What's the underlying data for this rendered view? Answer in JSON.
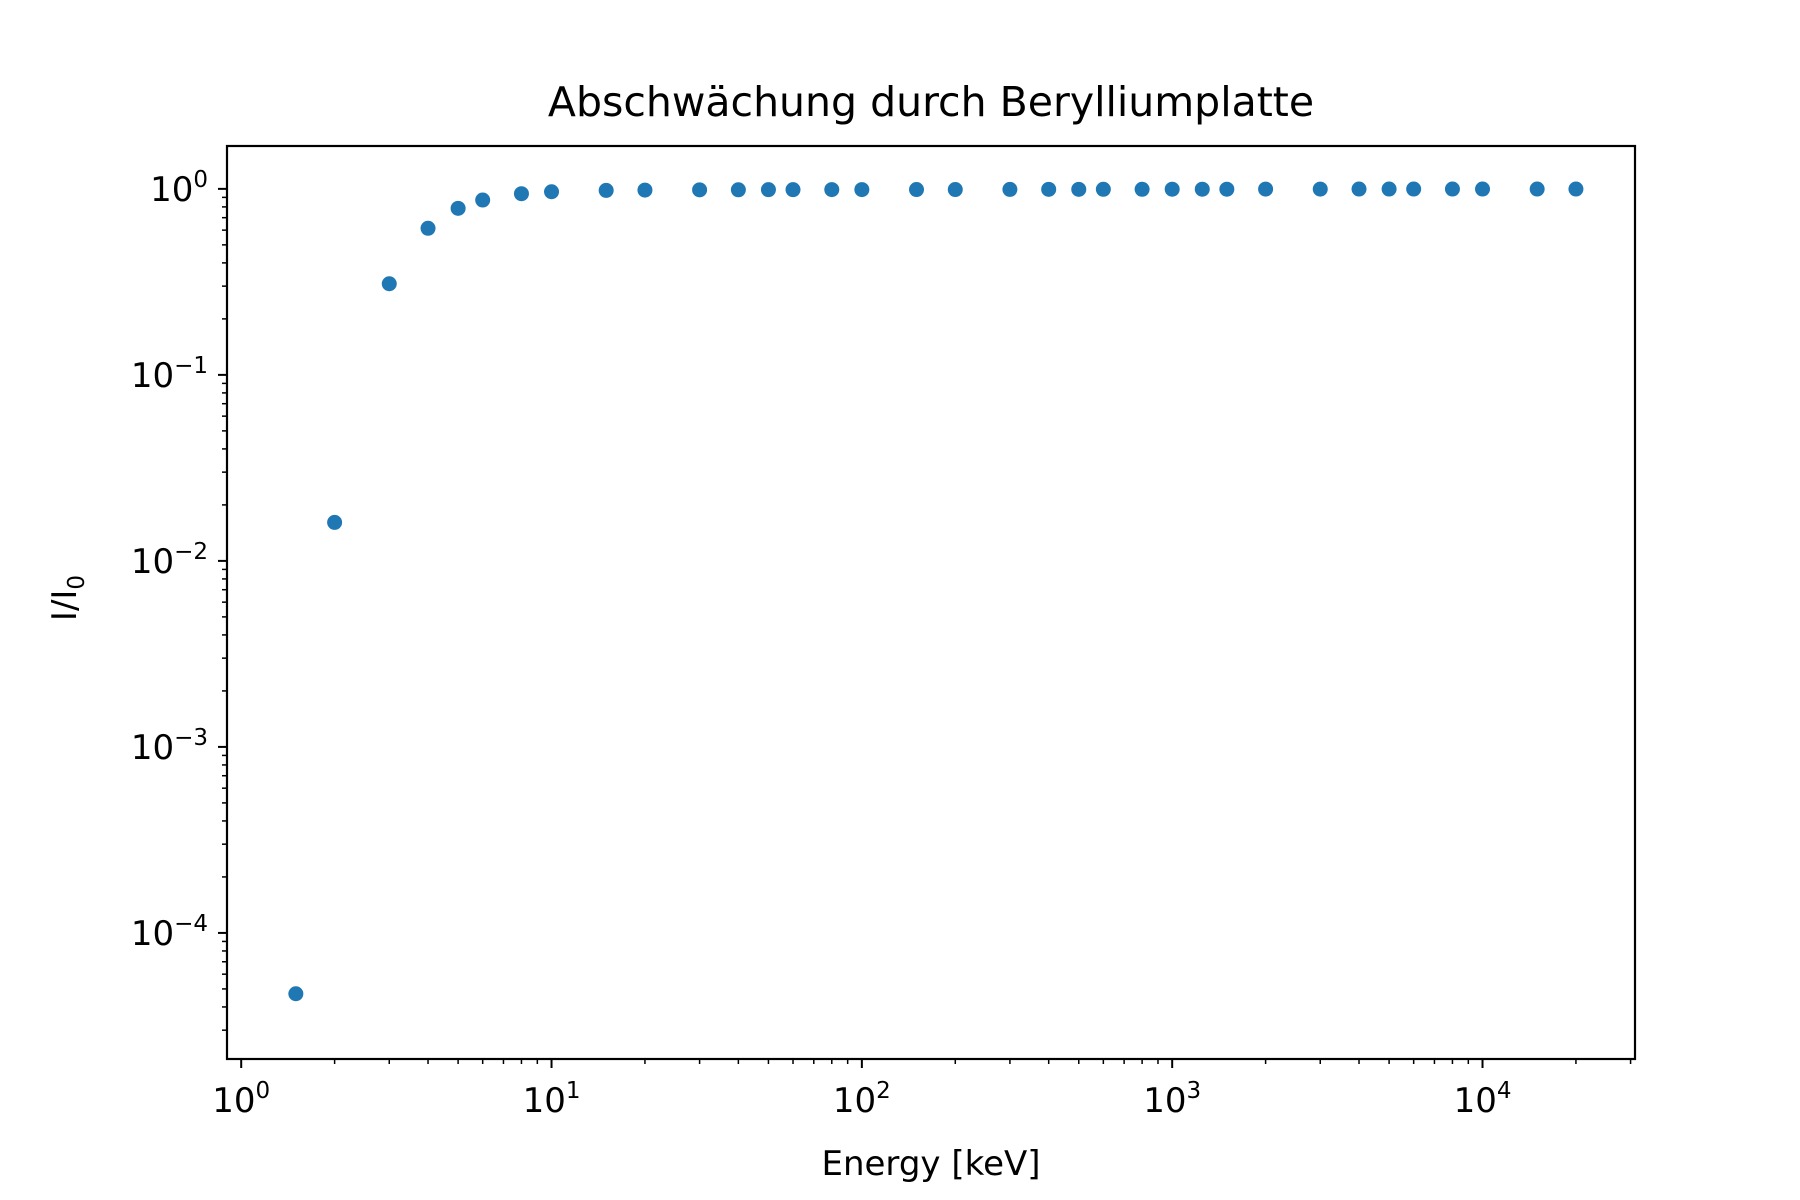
{
  "chart_data": {
    "type": "scatter",
    "title": "Abschwächung durch Berylliumplatte",
    "xlabel": "Energy [keV]",
    "ylabel_base": "I/I",
    "ylabel_sub": "0",
    "xscale": "log",
    "yscale": "log",
    "xlim": [
      0.9,
      31000
    ],
    "ylim": [
      2.1e-05,
      1.7
    ],
    "x_ticks": [
      {
        "base": "10",
        "exp": "0",
        "value": 1
      },
      {
        "base": "10",
        "exp": "1",
        "value": 10
      },
      {
        "base": "10",
        "exp": "2",
        "value": 100
      },
      {
        "base": "10",
        "exp": "3",
        "value": 1000
      },
      {
        "base": "10",
        "exp": "4",
        "value": 10000
      }
    ],
    "y_ticks": [
      {
        "base": "10",
        "exp": "0",
        "value": 1
      },
      {
        "base": "10",
        "exp": "−1",
        "value": 0.1
      },
      {
        "base": "10",
        "exp": "−2",
        "value": 0.01
      },
      {
        "base": "10",
        "exp": "−3",
        "value": 0.001
      },
      {
        "base": "10",
        "exp": "−4",
        "value": 0.0001
      }
    ],
    "grid": false,
    "marker_color": "#1f77b4",
    "series": [
      {
        "x": [
          1.5,
          2,
          3,
          4,
          5,
          6,
          8,
          10,
          15,
          20,
          30,
          40,
          50,
          60,
          80,
          100,
          150,
          200,
          300,
          400,
          500,
          600,
          800,
          1000,
          1250,
          1500,
          2000,
          3000,
          4000,
          5000,
          6000,
          8000,
          10000,
          15000,
          20000
        ],
        "y": [
          4.71e-05,
          0.0161,
          0.309,
          0.614,
          0.786,
          0.871,
          0.942,
          0.965,
          0.981,
          0.985,
          0.988,
          0.989,
          0.99,
          0.99,
          0.991,
          0.991,
          0.992,
          0.992,
          0.993,
          0.994,
          0.994,
          0.995,
          0.995,
          0.996,
          0.996,
          0.996,
          0.997,
          0.997,
          0.998,
          0.998,
          0.998,
          0.998,
          0.998,
          0.998,
          0.998
        ]
      }
    ]
  }
}
